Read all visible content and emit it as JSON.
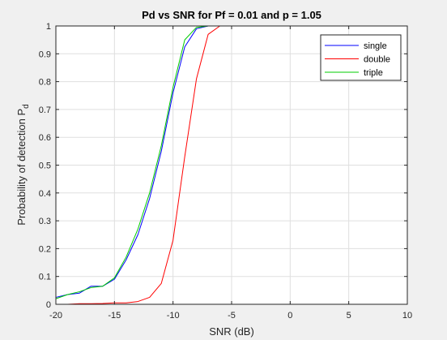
{
  "chart_data": {
    "type": "line",
    "title": "Pd vs SNR for Pf = 0.01 and p = 1.05",
    "xlabel": "SNR (dB)",
    "ylabel": "Probability of detection P",
    "ylabel_subscript": "d",
    "xlim": [
      -20,
      10
    ],
    "ylim": [
      0,
      1
    ],
    "grid": true,
    "legend_position": "top-right",
    "x_ticks": [
      -20,
      -15,
      -10,
      -5,
      0,
      5,
      10
    ],
    "y_ticks": [
      0,
      0.1,
      0.2,
      0.3,
      0.4,
      0.5,
      0.6,
      0.7,
      0.8,
      0.9,
      1
    ],
    "series": [
      {
        "name": "single",
        "color": "#0000ff",
        "x": [
          -20,
          -19,
          -18,
          -17,
          -16,
          -15,
          -14,
          -13,
          -12,
          -11,
          -10,
          -9,
          -8,
          -7,
          -6,
          -5,
          0,
          5,
          10
        ],
        "values": [
          0.025,
          0.035,
          0.04,
          0.065,
          0.065,
          0.09,
          0.16,
          0.25,
          0.38,
          0.55,
          0.76,
          0.925,
          0.99,
          1,
          1,
          1,
          1,
          1,
          1
        ]
      },
      {
        "name": "double",
        "color": "#ff0000",
        "x": [
          -20,
          -19,
          -18,
          -17,
          -16,
          -15,
          -14,
          -13,
          -12,
          -11,
          -10,
          -9,
          -8,
          -7,
          -6,
          -5,
          0,
          5,
          10
        ],
        "values": [
          0.0,
          0.0,
          0.002,
          0.002,
          0.003,
          0.005,
          0.005,
          0.01,
          0.025,
          0.075,
          0.23,
          0.53,
          0.81,
          0.97,
          1,
          1,
          1,
          1,
          1
        ]
      },
      {
        "name": "triple",
        "color": "#00cc00",
        "x": [
          -20,
          -19,
          -18,
          -17,
          -16,
          -15,
          -14,
          -13,
          -12,
          -11,
          -10,
          -9,
          -8,
          -7,
          -6,
          -5,
          0,
          5,
          10
        ],
        "values": [
          0.02,
          0.035,
          0.045,
          0.06,
          0.065,
          0.095,
          0.17,
          0.27,
          0.4,
          0.57,
          0.78,
          0.95,
          0.995,
          1,
          1,
          1,
          1,
          1,
          1
        ]
      }
    ]
  }
}
